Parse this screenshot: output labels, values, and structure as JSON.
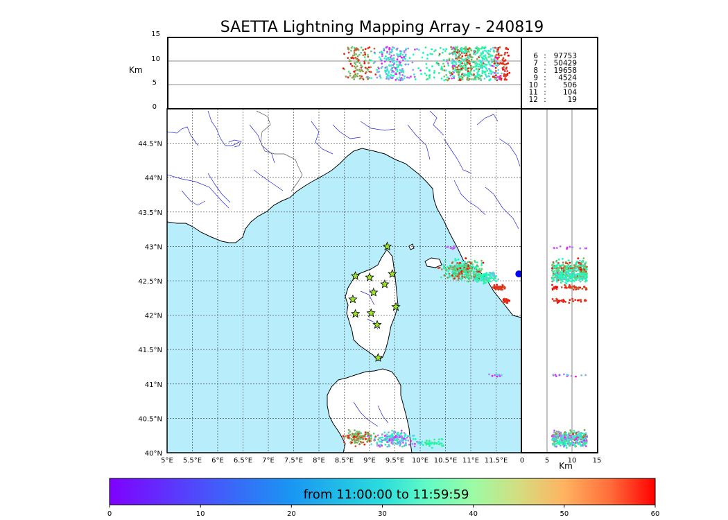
{
  "title": "SAETTA Lightning Mapping Array - 240819",
  "colorbar": {
    "label": "from 11:00:00 to 11:59:59",
    "ticks": [
      "0",
      "10",
      "20",
      "30",
      "40",
      "50",
      "60"
    ],
    "range": [
      0,
      60
    ],
    "colormap": "rainbow"
  },
  "colors": {
    "sea": "#b8eefc",
    "land": "#ffffff",
    "rivers": "#2222dd",
    "stations": "#9be32a",
    "highlight_count": "#ff0000"
  },
  "stations_icon": "star-icon",
  "counts": [
    {
      "n": "6",
      "value": "97753",
      "highlight": false
    },
    {
      "n": "7",
      "value": "50429",
      "highlight": true
    },
    {
      "n": "8",
      "value": "19658",
      "highlight": false
    },
    {
      "n": "9",
      "value": "4524",
      "highlight": false
    },
    {
      "n": "10",
      "value": "506",
      "highlight": false
    },
    {
      "n": "11",
      "value": "104",
      "highlight": false
    },
    {
      "n": "12",
      "value": "19",
      "highlight": false
    }
  ],
  "chart_data": {
    "type": "scatter",
    "title": "SAETTA Lightning Mapping Array - 240819",
    "map": {
      "xlim": [
        5,
        12
      ],
      "ylim": [
        40,
        45
      ],
      "x_ticks": [
        "5°E",
        "5.5°E",
        "6°E",
        "6.5°E",
        "7°E",
        "7.5°E",
        "8°E",
        "8.5°E",
        "9°E",
        "9.5°E",
        "10°E",
        "10.5°E",
        "11°E",
        "11.5°E"
      ],
      "y_ticks": [
        "40°N",
        "40.5°N",
        "41°N",
        "41.5°N",
        "42°N",
        "42.5°N",
        "43°N",
        "43.5°N",
        "44°N",
        "44.5°N"
      ],
      "grid": true,
      "stations": [
        {
          "lon": 9.35,
          "lat": 43.0
        },
        {
          "lon": 8.72,
          "lat": 42.57
        },
        {
          "lon": 9.0,
          "lat": 42.55
        },
        {
          "lon": 9.45,
          "lat": 42.6
        },
        {
          "lon": 9.3,
          "lat": 42.45
        },
        {
          "lon": 9.08,
          "lat": 42.33
        },
        {
          "lon": 8.67,
          "lat": 42.23
        },
        {
          "lon": 9.52,
          "lat": 42.12
        },
        {
          "lon": 8.72,
          "lat": 42.02
        },
        {
          "lon": 9.03,
          "lat": 42.03
        },
        {
          "lon": 9.15,
          "lat": 41.86
        },
        {
          "lon": 9.17,
          "lat": 41.38
        }
      ],
      "clusters": [
        {
          "lon": 10.85,
          "lat": 42.65,
          "dlon": 0.55,
          "dlat": 0.22,
          "t_range": [
            20,
            60
          ],
          "n": 320
        },
        {
          "lon": 11.55,
          "lat": 42.4,
          "dlon": 0.18,
          "dlat": 0.05,
          "t_range": [
            50,
            60
          ],
          "n": 50
        },
        {
          "lon": 11.7,
          "lat": 42.21,
          "dlon": 0.1,
          "dlat": 0.04,
          "t_range": [
            55,
            60
          ],
          "n": 30
        },
        {
          "lon": 11.3,
          "lat": 42.55,
          "dlon": 0.3,
          "dlat": 0.1,
          "t_range": [
            15,
            40
          ],
          "n": 120
        },
        {
          "lon": 8.8,
          "lat": 40.22,
          "dlon": 0.45,
          "dlat": 0.15,
          "t_range": [
            40,
            60
          ],
          "n": 120
        },
        {
          "lon": 9.5,
          "lat": 40.2,
          "dlon": 0.6,
          "dlat": 0.15,
          "t_range": [
            0,
            35
          ],
          "n": 200
        },
        {
          "lon": 10.25,
          "lat": 40.15,
          "dlon": 0.4,
          "dlat": 0.1,
          "t_range": [
            25,
            40
          ],
          "n": 40
        },
        {
          "lon": 11.5,
          "lat": 41.13,
          "dlon": 0.15,
          "dlat": 0.04,
          "t_range": [
            0,
            20
          ],
          "n": 15
        },
        {
          "lon": 10.65,
          "lat": 42.98,
          "dlon": 0.15,
          "dlat": 0.03,
          "t_range": [
            0,
            12
          ],
          "n": 12
        }
      ]
    },
    "lon_alt": {
      "xlim": [
        5,
        12
      ],
      "ylim": [
        0,
        15
      ],
      "y_ticks": [
        "0",
        "5",
        "10",
        "15"
      ],
      "ylabel": "Km",
      "gridlines_y": [
        5,
        10
      ]
    },
    "alt_lat": {
      "xlim": [
        0,
        15
      ],
      "ylim": [
        40,
        45
      ],
      "x_ticks": [
        "0",
        "5",
        "10",
        "15"
      ],
      "xlabel": "Km",
      "gridlines_x": [
        5,
        10
      ]
    }
  }
}
